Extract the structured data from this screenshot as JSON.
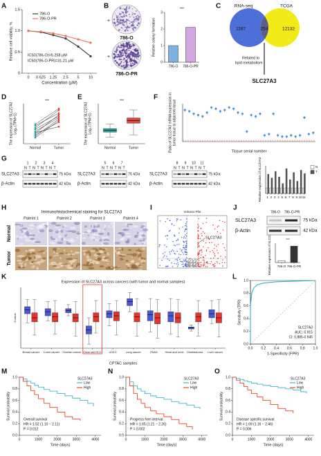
{
  "chart_data": [
    {
      "label": "A",
      "type": "line",
      "xlabel": "Concentration (μM)",
      "ylabel": "Relative cell viability, %",
      "categories": [
        "0",
        "0.625",
        "1.25",
        "2.5",
        "5",
        "10"
      ],
      "series": [
        {
          "name": "786-O",
          "color": "#3a3a3a",
          "values": [
            1.0,
            0.97,
            0.9,
            0.82,
            0.63,
            0.4
          ]
        },
        {
          "name": "786-O-PR",
          "color": "#e8765c",
          "values": [
            1.0,
            0.98,
            0.94,
            0.88,
            0.8,
            0.72
          ]
        }
      ],
      "ylim": [
        0,
        1.5
      ],
      "yticks": [
        0,
        0.5,
        {
          "value": 1,
          "label": "1.0"
        },
        1.5
      ],
      "annotations": [
        "IC50(786-O)=5.258 μM",
        "IC50(786-O-PR)=31.21 μM"
      ]
    },
    {
      "type": "bar",
      "ylabel": "Relative colony formation",
      "categories": [
        "786-O",
        "786-O-PR"
      ],
      "values": [
        1.0,
        2.1
      ],
      "colors": [
        "#7fb2e0",
        "#d3a6e3"
      ],
      "ylim": [
        0,
        3
      ],
      "yticks": [
        0,
        1,
        2,
        3
      ],
      "annotations": [
        "***"
      ]
    },
    {
      "label": "D",
      "type": "paired",
      "ylabel": [
        "The expression of SLC27A3",
        "Log₂ (TPM+1)"
      ],
      "categories": [
        "Normal",
        "Tumor"
      ],
      "pairs": [
        [
          2.1,
          5.8
        ],
        [
          1.5,
          4.9
        ],
        [
          3.2,
          6.7
        ],
        [
          2.5,
          5.2
        ],
        [
          1.8,
          4.3
        ],
        [
          3.6,
          6.1
        ],
        [
          2.9,
          5.5
        ],
        [
          2.2,
          3.4
        ],
        [
          3.9,
          7.0
        ],
        [
          1.2,
          4.6
        ]
      ],
      "colors": [
        "#2a9fa0",
        "#d9443a"
      ],
      "ylim": [
        0,
        8
      ],
      "annotations": [
        "***"
      ]
    },
    {
      "label": "E",
      "type": "box",
      "ylabel": [
        "The expression of SLC27A3",
        "Log₂ (TPM+1)"
      ],
      "categories": [
        "Normal",
        "Tumor"
      ],
      "boxes": [
        [
          1.5,
          2.6,
          3.0,
          3.4,
          4.4
        ],
        [
          2.0,
          4.6,
          5.2,
          5.8,
          7.6
        ]
      ],
      "colors": [
        "#2a9d9a",
        "#e0453f"
      ],
      "ylim": [
        0,
        9
      ],
      "annotations": [
        "***"
      ]
    },
    {
      "label": "F",
      "type": "dot",
      "ylabel": [
        "Ratio of SLC27A3 mRNA expression in",
        "tumor tissue to adjacent tissue"
      ],
      "xlabel": "Tissue serial number",
      "values": [
        25,
        24,
        22,
        21,
        20,
        23,
        27,
        26,
        24,
        25,
        27,
        26,
        23,
        22,
        8,
        21,
        20,
        22,
        5,
        6,
        22,
        5,
        4,
        4,
        5,
        4,
        5,
        19,
        6,
        7
      ],
      "color": "#4a90d9",
      "reference": 1,
      "ylim": [
        0,
        30
      ]
    },
    {
      "type": "bar",
      "ylabel": "Relative expression of SLC27A3",
      "categories": [
        "1",
        "2",
        "3",
        "4",
        "5",
        "6",
        "7",
        "8",
        "9",
        "10",
        "11"
      ],
      "series": [
        {
          "name": "N",
          "color": "#ffffff",
          "values": [
            1,
            1,
            1,
            1,
            1,
            1,
            1,
            1,
            1,
            1,
            1
          ]
        },
        {
          "name": "T",
          "color": "#555555",
          "values": [
            3.5,
            2.8,
            4.0,
            3.0,
            1.8,
            4.5,
            2.5,
            3.8,
            2.2,
            4.2,
            3.6
          ]
        }
      ],
      "ylim": [
        0,
        5
      ]
    },
    {
      "type": "bar",
      "ylabel": "Relative expression of SLC27A3",
      "categories": [
        "786-O",
        "786-O-PR"
      ],
      "values": [
        1.0,
        8.5
      ],
      "colors": [
        "#ffffff",
        "#333333"
      ],
      "ylim": [
        0,
        10
      ],
      "annotations": [
        "***"
      ]
    },
    {
      "label": "K",
      "type": "box",
      "title": "Expression of SLC27A3 across cancers (with tumor and normal samples)",
      "ylabel": "Z-value",
      "footer": "CPTAC samples",
      "categories": [
        "Breast cancer",
        "Colon cancer",
        "Ovarian cancer",
        "Clear cell RCC",
        "UCEC",
        "Lung cancer",
        "PAAD",
        "Head and neck",
        "Glioblastoma",
        "Liver cancer"
      ],
      "series": [
        {
          "color": "#4b57d6",
          "boxes": [
            [
              -0.5,
              0.4,
              0.8,
              1.1,
              1.8
            ],
            [
              -0.3,
              0.2,
              0.6,
              0.9,
              1.6
            ],
            [
              0.2,
              0.5,
              0.7,
              0.9,
              1.3
            ],
            [
              -2.6,
              -1.6,
              -1.2,
              -0.8,
              0
            ],
            [
              -0.8,
              0,
              0.4,
              0.7,
              1.4
            ],
            [
              0.6,
              1.2,
              1.6,
              1.9,
              2.5
            ],
            [
              -1.4,
              -0.3,
              0.3,
              0.7,
              1.9
            ],
            [
              -1.6,
              -0.4,
              0.2,
              0.6,
              1.9
            ],
            [
              -1.3,
              -1.1,
              -1.0,
              -0.9,
              -0.7
            ],
            [
              -0.6,
              0,
              0.4,
              0.8,
              1.7
            ]
          ]
        },
        {
          "color": "#e8322b",
          "boxes": [
            [
              -1.7,
              -0.4,
              0,
              0.5,
              1.8
            ],
            [
              -1.6,
              -0.4,
              0.1,
              0.5,
              1.7
            ],
            [
              -1.8,
              -0.4,
              0,
              0.4,
              1.6
            ],
            [
              -1.5,
              -0.4,
              0.1,
              0.5,
              1.7
            ],
            [
              -1.7,
              -0.3,
              0.2,
              0.6,
              1.7
            ],
            [
              -1.8,
              -0.4,
              0.1,
              0.5,
              1.9
            ],
            [
              -2.0,
              -0.6,
              0,
              0.5,
              1.8
            ],
            [
              -1.9,
              -0.5,
              0,
              0.5,
              1.8
            ],
            [
              -1.8,
              -0.4,
              0.1,
              0.5,
              1.7
            ],
            [
              -1.9,
              -0.5,
              0,
              0.5,
              1.8
            ]
          ]
        }
      ],
      "ylim": [
        -3,
        3
      ]
    },
    {
      "label": "L",
      "type": "line",
      "xlabel": "1-Specificity (FPR)",
      "ylabel": "Sensitivity (TPR)",
      "x": [
        0,
        0,
        0.02,
        0.05,
        0.1,
        0.2,
        0.4,
        0.7,
        1
      ],
      "values": [
        0,
        0.6,
        0.8,
        0.88,
        0.93,
        0.96,
        0.98,
        0.99,
        1
      ],
      "color": "#2bb5c5",
      "xlim": [
        0,
        1
      ],
      "ylim": [
        0,
        1
      ],
      "xticks": [
        {
          "value": 0,
          "label": "0.0"
        },
        0.2,
        0.4,
        0.6,
        0.8,
        {
          "value": 1,
          "label": "1.0"
        }
      ],
      "yticks": [
        {
          "value": 0,
          "label": "0.0"
        },
        0.2,
        0.4,
        0.6,
        0.8,
        {
          "value": 1,
          "label": "1.0"
        }
      ],
      "annotations": [
        "SLC27A3",
        "AUC: 0.915",
        "CI: 0.885-0.945"
      ]
    },
    {
      "label": "M",
      "type": "step",
      "xlabel": "Time (days)",
      "ylabel": "Survival probability",
      "legend_title": "SLC27A3",
      "series": [
        {
          "name": "Low",
          "color": "#3cb6c9",
          "x": [
            0,
            200,
            400,
            600,
            800,
            1000,
            1300,
            1600,
            2000,
            2400,
            2800,
            3200,
            3600,
            3900
          ],
          "values": [
            1,
            0.97,
            0.93,
            0.9,
            0.86,
            0.83,
            0.79,
            0.76,
            0.72,
            0.68,
            0.64,
            0.6,
            0.55,
            0.5
          ]
        },
        {
          "name": "High",
          "color": "#e8452c",
          "x": [
            0,
            200,
            400,
            600,
            800,
            1000,
            1300,
            1600,
            2000,
            2400,
            2800,
            3200
          ],
          "values": [
            1,
            0.93,
            0.85,
            0.77,
            0.7,
            0.63,
            0.55,
            0.48,
            0.4,
            0.32,
            0.28,
            0.25
          ]
        }
      ],
      "xlim": [
        0,
        4300
      ],
      "xticks": [
        0,
        1000,
        2000,
        3000,
        4000
      ],
      "ylim": [
        0,
        1
      ],
      "yticks": [
        {
          "value": 0,
          "label": "0.0"
        },
        0.2,
        0.4,
        0.6,
        0.8,
        {
          "value": 1,
          "label": "1.0"
        }
      ],
      "annotations": [
        "Overall survival",
        "HR = 1.52 (1.10 − 2.11)",
        "P = 0.012"
      ]
    },
    {
      "label": "N",
      "type": "step",
      "xlabel": "Time (days)",
      "ylabel": "Survival probability",
      "legend_title": "SLC27A3",
      "series": [
        {
          "name": "Low",
          "color": "#3cb6c9",
          "x": [
            0,
            200,
            400,
            600,
            800,
            1000,
            1300,
            1600,
            2000,
            2400,
            2800,
            3200,
            3600,
            3900
          ],
          "values": [
            1,
            0.92,
            0.85,
            0.8,
            0.76,
            0.72,
            0.68,
            0.65,
            0.62,
            0.58,
            0.55,
            0.52,
            0.48,
            0.45
          ]
        },
        {
          "name": "High",
          "color": "#e8452c",
          "x": [
            0,
            200,
            400,
            600,
            800,
            1000,
            1300,
            1600,
            2000,
            2400,
            2800,
            3200,
            3500
          ],
          "values": [
            1,
            0.85,
            0.72,
            0.62,
            0.55,
            0.48,
            0.42,
            0.37,
            0.32,
            0.27,
            0.2,
            0.15,
            0.1
          ]
        }
      ],
      "xlim": [
        0,
        4300
      ],
      "xticks": [
        0,
        1000,
        2000,
        3000,
        4000
      ],
      "ylim": [
        0,
        1
      ],
      "yticks": [
        {
          "value": 0,
          "label": "0.0"
        },
        0.2,
        0.4,
        0.6,
        0.8,
        {
          "value": 1,
          "label": "1.0"
        }
      ],
      "annotations": [
        "Progress free interval",
        "HR = 1.65 (1.21 − 2.26)",
        "P = 0.002"
      ]
    },
    {
      "label": "O",
      "type": "step",
      "xlabel": "Time (days)",
      "ylabel": "Survival probability",
      "legend_title": "SLC27A3",
      "series": [
        {
          "name": "Low",
          "color": "#3cb6c9",
          "x": [
            0,
            200,
            400,
            600,
            800,
            1000,
            1300,
            1600,
            2000,
            2400,
            2800,
            3200,
            3600,
            3900
          ],
          "values": [
            1,
            0.98,
            0.96,
            0.94,
            0.92,
            0.9,
            0.88,
            0.86,
            0.84,
            0.82,
            0.8,
            0.78,
            0.75,
            0.72
          ]
        },
        {
          "name": "High",
          "color": "#e8452c",
          "x": [
            0,
            200,
            400,
            600,
            800,
            1000,
            1300,
            1600,
            2000,
            2400,
            2800,
            3200
          ],
          "values": [
            1,
            0.95,
            0.9,
            0.84,
            0.78,
            0.72,
            0.66,
            0.6,
            0.53,
            0.46,
            0.42,
            0.38
          ]
        }
      ],
      "xlim": [
        0,
        4300
      ],
      "xticks": [
        0,
        1000,
        2000,
        3000,
        4000
      ],
      "ylim": [
        0,
        1
      ],
      "yticks": [
        {
          "value": 0,
          "label": "0.0"
        },
        0.2,
        0.4,
        0.6,
        0.8,
        {
          "value": 1,
          "label": "1.0"
        }
      ],
      "annotations": [
        "Disease specific survival",
        "HR = 1.69 (1.16 − 2.46)",
        "P = 0.006"
      ]
    }
  ],
  "panels": {
    "B": {
      "label": "B",
      "sign": "+",
      "plates": [
        "786-O",
        "786-O-PR"
      ]
    },
    "C": {
      "label": "C",
      "sets": [
        "RNA-seq",
        "TCGA"
      ],
      "counts": [
        "1167",
        "254",
        "12132"
      ],
      "note": [
        "Related to",
        "lipid metabolism"
      ],
      "gene": "SLC27A3"
    },
    "G": {
      "label": "G",
      "lanes": [
        "N",
        "T"
      ],
      "proteins": [
        "SLC27A3",
        "β-Actin"
      ],
      "sizes": [
        "75 kDa",
        "42 kDa"
      ],
      "blocks": [
        [
          "1",
          "2",
          "3",
          "4"
        ],
        [
          "5",
          "6",
          "7"
        ],
        [
          "8",
          "9",
          "10",
          "11"
        ]
      ]
    },
    "H": {
      "label": "H",
      "title": "Immunohistochemical staining for SLC27A3",
      "patients": [
        "Pateint 1",
        "Pateint 2",
        "Pateint 3",
        "Pateint 4"
      ],
      "rows": [
        "Normal",
        "Tumor"
      ]
    },
    "I": {
      "label": "I",
      "title": "Volcano Plot",
      "gene": "SLC27A3"
    },
    "J": {
      "label": "J",
      "cells": [
        "786-O",
        "786-O-PR"
      ],
      "proteins": [
        "SLC27A3",
        "β-Actin"
      ],
      "sizes": [
        "75 kDa",
        "42 kDa"
      ]
    }
  }
}
